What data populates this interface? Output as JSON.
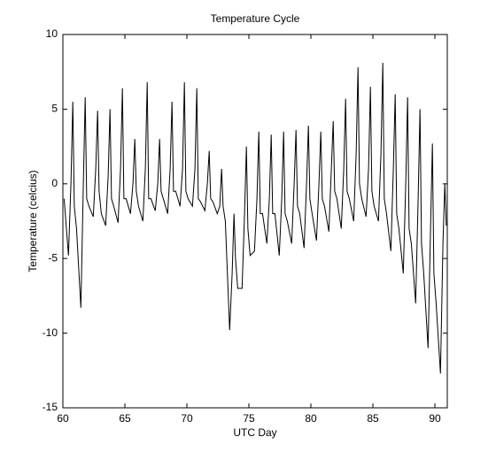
{
  "chart_data": {
    "type": "line",
    "title": "Temperature Cycle",
    "x_label": "UTC Day",
    "y_label": "Temperature (celcius)",
    "xlim": [
      60,
      91
    ],
    "ylim": [
      -15,
      10
    ],
    "xticks": [
      60,
      65,
      70,
      75,
      80,
      85,
      90
    ],
    "yticks": [
      -15,
      -10,
      -5,
      0,
      5,
      10
    ],
    "series": [
      {
        "color": "#000000",
        "x": [
          60.1,
          60.45,
          60.65,
          60.8,
          60.92,
          61.1,
          61.45,
          61.65,
          61.8,
          61.92,
          62.1,
          62.45,
          62.65,
          62.8,
          62.92,
          63.1,
          63.45,
          63.65,
          63.8,
          63.92,
          64.1,
          64.45,
          64.65,
          64.8,
          64.92,
          65.1,
          65.45,
          65.65,
          65.8,
          65.92,
          66.1,
          66.45,
          66.65,
          66.8,
          66.92,
          67.1,
          67.45,
          67.65,
          67.8,
          67.92,
          68.1,
          68.45,
          68.65,
          68.8,
          68.92,
          69.1,
          69.45,
          69.65,
          69.8,
          69.92,
          70.1,
          70.45,
          70.65,
          70.8,
          70.92,
          71.1,
          71.45,
          71.65,
          71.8,
          71.92,
          72.1,
          72.45,
          72.65,
          72.8,
          72.92,
          73.1,
          73.45,
          73.65,
          73.8,
          73.92,
          74.1,
          74.45,
          74.65,
          74.8,
          74.92,
          75.1,
          75.45,
          75.65,
          75.8,
          75.92,
          76.1,
          76.45,
          76.65,
          76.8,
          76.92,
          77.1,
          77.45,
          77.65,
          77.8,
          77.92,
          78.1,
          78.45,
          78.65,
          78.8,
          78.92,
          79.1,
          79.45,
          79.65,
          79.8,
          79.92,
          80.1,
          80.45,
          80.65,
          80.8,
          80.92,
          81.1,
          81.45,
          81.65,
          81.8,
          81.92,
          82.1,
          82.45,
          82.65,
          82.8,
          82.92,
          83.1,
          83.45,
          83.65,
          83.8,
          83.92,
          84.1,
          84.45,
          84.65,
          84.8,
          84.92,
          85.1,
          85.45,
          85.65,
          85.8,
          85.92,
          86.1,
          86.45,
          86.65,
          86.8,
          86.92,
          87.1,
          87.45,
          87.65,
          87.8,
          87.92,
          88.1,
          88.45,
          88.65,
          88.8,
          88.92,
          89.1,
          89.45,
          89.65,
          89.8,
          89.92,
          90.1,
          90.45,
          90.65,
          90.8,
          90.92
        ],
        "values": [
          -1,
          -4.8,
          0,
          5.5,
          -1.5,
          -3,
          -8.3,
          0,
          5.8,
          -1,
          -1.5,
          -2.2,
          1,
          4.9,
          -0.5,
          -2,
          -2.8,
          0.5,
          5,
          -1,
          -1.5,
          -2.6,
          1,
          6.4,
          -1,
          -1,
          -2,
          0,
          3,
          -0.5,
          -1.5,
          -2.5,
          1,
          6.8,
          -1,
          -1,
          -1.8,
          0,
          3,
          -0.5,
          -1,
          -2,
          1,
          5.5,
          -0.5,
          -0.5,
          -1.5,
          1,
          6.8,
          -0.5,
          -1,
          -1.5,
          1,
          6.4,
          -1,
          -1.2,
          -1.8,
          0,
          2.2,
          -1,
          -1.2,
          -2,
          -1.5,
          1,
          -1.5,
          -2.5,
          -9.8,
          -6,
          -2,
          -5,
          -7,
          -7,
          -2,
          2.5,
          -3,
          -4.8,
          -4.5,
          -1,
          3.5,
          -2,
          -2,
          -4,
          -1,
          3.3,
          -2,
          -2,
          -4.8,
          -1,
          3.5,
          -2,
          -2.5,
          -4,
          0,
          3.6,
          -1.5,
          -2,
          -4.3,
          0,
          3.9,
          -1,
          -2,
          -3.8,
          0,
          3.5,
          -1,
          -1.5,
          -3.2,
          1,
          4.2,
          -0.5,
          -1,
          -3,
          1,
          5.7,
          -0.5,
          -1,
          -2.5,
          2,
          7.8,
          0,
          -1,
          -2.2,
          1,
          6.5,
          -0.5,
          -1.5,
          -2.5,
          2,
          8.1,
          -1,
          -2,
          -4.5,
          1,
          6,
          -2,
          -3,
          -6,
          0,
          5.8,
          -3,
          -4,
          -8,
          -1,
          5,
          -4,
          -6,
          -11,
          -3,
          2.7,
          -6,
          -8,
          -12.7,
          -4,
          0,
          -2.8
        ]
      }
    ]
  }
}
